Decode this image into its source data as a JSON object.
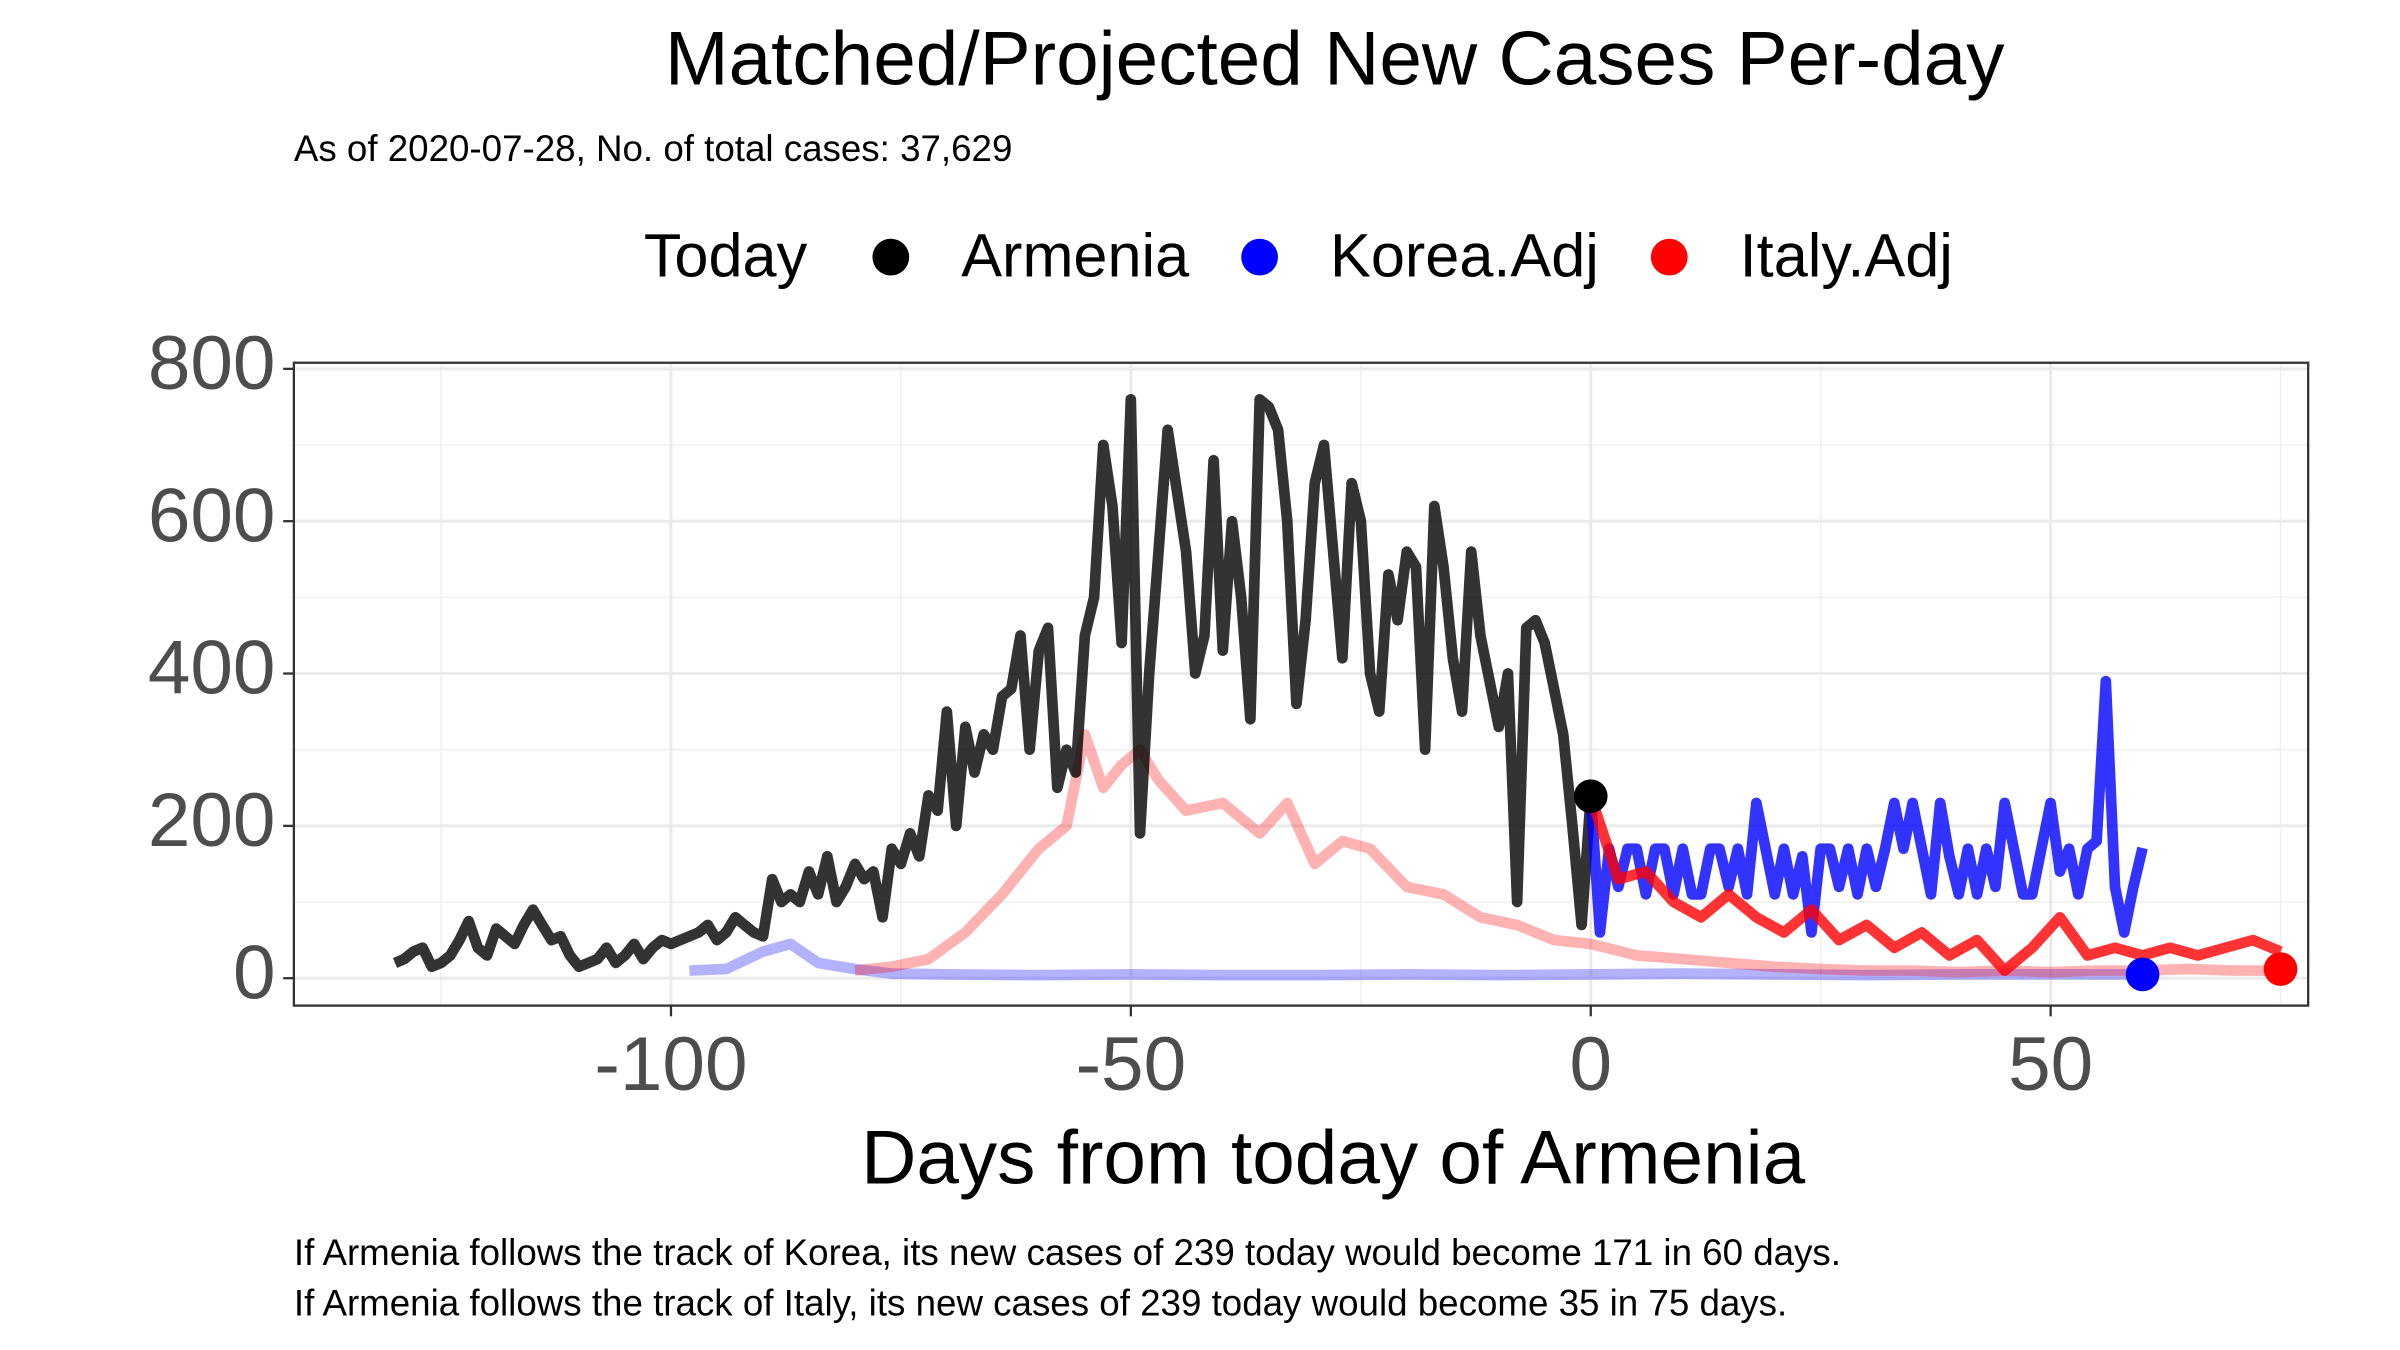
{
  "chart_data": {
    "type": "line",
    "title": "Matched/Projected New Cases Per-day",
    "subtitle": "As of 2020-07-28, No. of total cases: 37,629",
    "legend_title": "Today",
    "x_label": "Days from today of Armenia",
    "notes": [
      "If Armenia follows the track of Korea, its new cases of 239 today would become 171 in 60 days.",
      "If Armenia follows the track of Italy, its new cases of 239 today would become 35 in 75 days."
    ],
    "xlim": [
      -141,
      78
    ],
    "ylim": [
      -36,
      808
    ],
    "xticks": [
      -100,
      -50,
      0,
      50
    ],
    "yticks": [
      0,
      200,
      400,
      600,
      800
    ],
    "grid": true,
    "legend_position": "top",
    "track_opacity": 0.3,
    "series": [
      {
        "name": "Armenia",
        "color": "#000000",
        "x": [
          -130,
          -129,
          -128,
          -127,
          -126,
          -125,
          -124,
          -123,
          -122,
          -121,
          -120,
          -119,
          -118,
          -117,
          -116,
          -115,
          -114,
          -113,
          -112,
          -111,
          -110,
          -109,
          -108,
          -107,
          -106,
          -105,
          -104,
          -103,
          -102,
          -101,
          -100,
          -99,
          -98,
          -97,
          -96,
          -95,
          -94,
          -93,
          -92,
          -91,
          -90,
          -89,
          -88,
          -87,
          -86,
          -85,
          -84,
          -83,
          -82,
          -81,
          -80,
          -79,
          -78,
          -77,
          -76,
          -75,
          -74,
          -73,
          -72,
          -71,
          -70,
          -69,
          -68,
          -67,
          -66,
          -65,
          -64,
          -63,
          -62,
          -61,
          -60,
          -59,
          -58,
          -57,
          -56,
          -55,
          -54,
          -53,
          -52,
          -51,
          -50,
          -49,
          -48,
          -47,
          -46,
          -45,
          -44,
          -43,
          -42,
          -41,
          -40,
          -39,
          -38,
          -37,
          -36,
          -35,
          -34,
          -33,
          -32,
          -31,
          -30,
          -29,
          -28,
          -27,
          -26,
          -25,
          -24,
          -23,
          -22,
          -21,
          -20,
          -19,
          -18,
          -17,
          -16,
          -15,
          -14,
          -13,
          -12,
          -11,
          -10,
          -9,
          -8,
          -7,
          -6,
          -5,
          -4,
          -3,
          -2,
          -1,
          0
        ],
        "values": [
          20,
          25,
          35,
          40,
          15,
          20,
          30,
          50,
          75,
          40,
          30,
          65,
          55,
          45,
          70,
          90,
          70,
          50,
          55,
          30,
          15,
          20,
          25,
          40,
          20,
          30,
          45,
          25,
          40,
          50,
          45,
          50,
          55,
          60,
          70,
          50,
          60,
          80,
          70,
          60,
          55,
          130,
          100,
          110,
          100,
          140,
          110,
          160,
          100,
          120,
          150,
          130,
          140,
          80,
          170,
          150,
          190,
          160,
          240,
          220,
          350,
          200,
          330,
          270,
          320,
          300,
          370,
          380,
          450,
          300,
          430,
          460,
          250,
          300,
          270,
          450,
          500,
          700,
          620,
          440,
          760,
          190,
          400,
          560,
          720,
          640,
          560,
          400,
          450,
          680,
          430,
          600,
          500,
          340,
          760,
          750,
          720,
          600,
          360,
          470,
          650,
          700,
          560,
          420,
          650,
          600,
          400,
          350,
          530,
          470,
          560,
          540,
          300,
          620,
          540,
          420,
          350,
          560,
          450,
          390,
          330,
          400,
          100,
          460,
          470,
          440,
          380,
          320,
          200,
          70,
          239
        ],
        "today": {
          "x": 0,
          "y": 239
        }
      },
      {
        "name": "Korea.Adj",
        "color": "#0000ff",
        "track_x": [
          -98,
          -94,
          -90,
          -87,
          -84,
          -80,
          -76,
          -70,
          -60,
          -50,
          -40,
          -30,
          -20,
          -10,
          0,
          10,
          20,
          30,
          40,
          50,
          60
        ],
        "track_values": [
          10,
          12,
          35,
          45,
          20,
          12,
          6,
          5,
          4,
          5,
          4,
          4,
          5,
          4,
          5,
          6,
          5,
          4,
          5,
          5,
          5
        ],
        "x": [
          0,
          1,
          2,
          3,
          4,
          5,
          6,
          7,
          8,
          9,
          10,
          11,
          12,
          13,
          14,
          15,
          16,
          17,
          18,
          19,
          20,
          21,
          22,
          23,
          24,
          25,
          26,
          27,
          28,
          29,
          30,
          31,
          32,
          33,
          34,
          35,
          36,
          37,
          38,
          39,
          40,
          41,
          42,
          43,
          44,
          45,
          46,
          47,
          48,
          49,
          50,
          51,
          52,
          53,
          54,
          55,
          56,
          57,
          58,
          59,
          60
        ],
        "values": [
          239,
          60,
          170,
          120,
          170,
          170,
          110,
          170,
          170,
          110,
          170,
          110,
          110,
          170,
          170,
          120,
          170,
          110,
          230,
          170,
          110,
          170,
          110,
          160,
          60,
          170,
          170,
          120,
          170,
          110,
          170,
          120,
          170,
          230,
          170,
          230,
          170,
          110,
          230,
          160,
          110,
          170,
          110,
          170,
          120,
          230,
          170,
          110,
          110,
          170,
          230,
          140,
          170,
          110,
          170,
          180,
          390,
          120,
          60,
          120,
          171
        ],
        "today": {
          "x": 60,
          "y": 5
        }
      },
      {
        "name": "Italy.Adj",
        "color": "#ff0000",
        "track_x": [
          -80,
          -76,
          -72,
          -68,
          -64,
          -60,
          -57,
          -55,
          -53,
          -51,
          -49,
          -47,
          -44,
          -40,
          -36,
          -33,
          -30,
          -27,
          -24,
          -20,
          -16,
          -12,
          -8,
          -4,
          0,
          5,
          10,
          15,
          20,
          25,
          30,
          35,
          40,
          45,
          50,
          55,
          60,
          65,
          70,
          75
        ],
        "track_values": [
          10,
          15,
          25,
          60,
          110,
          170,
          200,
          320,
          250,
          280,
          300,
          260,
          220,
          230,
          190,
          230,
          150,
          180,
          170,
          120,
          110,
          80,
          70,
          50,
          45,
          30,
          25,
          20,
          15,
          12,
          10,
          10,
          8,
          10,
          8,
          10,
          10,
          12,
          10,
          10
        ],
        "x": [
          0,
          3,
          6,
          9,
          12,
          15,
          18,
          21,
          24,
          27,
          30,
          33,
          36,
          39,
          42,
          45,
          48,
          51,
          54,
          57,
          60,
          63,
          66,
          69,
          72,
          75
        ],
        "values": [
          239,
          130,
          140,
          100,
          80,
          110,
          80,
          60,
          90,
          50,
          70,
          40,
          60,
          30,
          50,
          10,
          40,
          80,
          30,
          40,
          30,
          40,
          30,
          40,
          50,
          35
        ],
        "today": {
          "x": 75,
          "y": 12
        }
      }
    ]
  }
}
